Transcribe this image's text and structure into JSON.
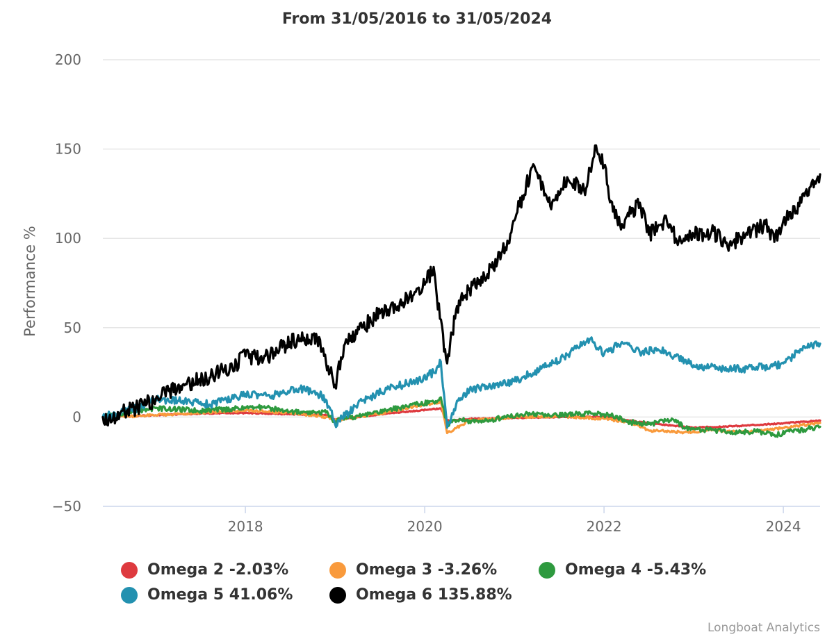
{
  "chart_data": {
    "type": "line",
    "title": "From 31/05/2016 to 31/05/2024",
    "xlabel": "",
    "ylabel": "Performance %",
    "xlim": [
      2016.41,
      2024.41
    ],
    "ylim": [
      -50,
      200
    ],
    "yticks": [
      -50,
      0,
      50,
      100,
      150,
      200
    ],
    "xticks": [
      2018,
      2020,
      2022,
      2024
    ],
    "grid": true,
    "legend_position": "bottom",
    "series": [
      {
        "name": "Omega 2",
        "legend_label": "Omega 2 -2.03%",
        "color": "#de3a3f",
        "x": [
          2016.41,
          2017.0,
          2017.5,
          2018.0,
          2018.5,
          2018.9,
          2019.0,
          2019.5,
          2019.9,
          2020.18,
          2020.25,
          2020.5,
          2021.0,
          2021.5,
          2022.0,
          2022.5,
          2023.0,
          2023.5,
          2024.0,
          2024.41
        ],
        "y": [
          0.0,
          1.0,
          2.0,
          2.2,
          1.6,
          1.0,
          -1.5,
          1.5,
          3.5,
          4.8,
          -2.0,
          -1.0,
          -0.5,
          0.0,
          0.0,
          -3.5,
          -6.0,
          -5.0,
          -3.5,
          -2.03
        ]
      },
      {
        "name": "Omega 3",
        "legend_label": "Omega 3 -3.26%",
        "color": "#f99a3c",
        "x": [
          2016.41,
          2017.0,
          2017.5,
          2018.0,
          2018.5,
          2018.9,
          2019.0,
          2019.5,
          2019.9,
          2020.18,
          2020.25,
          2020.5,
          2021.0,
          2021.5,
          2022.0,
          2022.3,
          2022.5,
          2022.9,
          2023.2,
          2023.6,
          2024.0,
          2024.41
        ],
        "y": [
          0.0,
          1.0,
          2.5,
          3.5,
          2.5,
          0.0,
          -2.0,
          2.0,
          6.0,
          8.5,
          -9.0,
          -2.0,
          0.0,
          0.5,
          -1.0,
          -3.0,
          -7.5,
          -8.5,
          -7.5,
          -8.5,
          -6.0,
          -3.26
        ]
      },
      {
        "name": "Omega 4",
        "legend_label": "Omega 4 -5.43%",
        "color": "#2e9a3f",
        "x": [
          2016.41,
          2016.7,
          2017.0,
          2017.5,
          2018.0,
          2018.2,
          2018.5,
          2018.9,
          2019.0,
          2019.3,
          2019.6,
          2019.9,
          2020.1,
          2020.18,
          2020.25,
          2020.4,
          2020.6,
          2020.9,
          2021.2,
          2021.4,
          2021.6,
          2021.9,
          2022.1,
          2022.3,
          2022.5,
          2022.7,
          2022.8,
          2022.9,
          2023.1,
          2023.4,
          2023.7,
          2023.9,
          2024.1,
          2024.41
        ],
        "y": [
          0.0,
          3.0,
          5.0,
          3.5,
          5.0,
          5.5,
          3.0,
          2.5,
          -2.5,
          1.0,
          4.0,
          7.0,
          8.5,
          11.0,
          -4.0,
          -1.5,
          -3.0,
          0.0,
          2.0,
          0.5,
          1.5,
          2.0,
          0.5,
          -3.0,
          -4.0,
          -2.0,
          -1.5,
          -6.5,
          -7.0,
          -8.5,
          -8.0,
          -10.0,
          -8.0,
          -5.43
        ]
      },
      {
        "name": "Omega 5",
        "legend_label": "Omega 5 41.06%",
        "color": "#2391b0",
        "x": [
          2016.41,
          2016.8,
          2017.0,
          2017.3,
          2017.6,
          2017.9,
          2018.0,
          2018.3,
          2018.6,
          2018.85,
          2018.95,
          2019.0,
          2019.3,
          2019.6,
          2019.9,
          2020.1,
          2020.18,
          2020.25,
          2020.35,
          2020.5,
          2020.8,
          2021.0,
          2021.3,
          2021.6,
          2021.85,
          2022.0,
          2022.2,
          2022.4,
          2022.6,
          2022.8,
          2023.0,
          2023.3,
          2023.6,
          2023.9,
          2024.0,
          2024.2,
          2024.41
        ],
        "y": [
          0.0,
          5.0,
          10.0,
          9.0,
          7.0,
          11.0,
          13.0,
          12.0,
          16.0,
          12.0,
          4.0,
          -4.0,
          9.0,
          16.0,
          20.0,
          25.0,
          31.0,
          -6.0,
          7.0,
          15.0,
          18.0,
          20.0,
          27.0,
          35.0,
          44.0,
          35.0,
          42.0,
          36.0,
          38.0,
          34.0,
          29.0,
          27.0,
          27.0,
          29.0,
          30.0,
          38.0,
          41.06
        ]
      },
      {
        "name": "Omega 6",
        "legend_label": "Omega 6 135.88%",
        "color": "#000000",
        "x": [
          2016.41,
          2016.5,
          2016.6,
          2016.8,
          2017.0,
          2017.3,
          2017.6,
          2017.9,
          2018.0,
          2018.2,
          2018.5,
          2018.8,
          2018.9,
          2019.0,
          2019.1,
          2019.3,
          2019.5,
          2019.7,
          2019.9,
          2020.0,
          2020.1,
          2020.17,
          2020.25,
          2020.35,
          2020.5,
          2020.7,
          2020.9,
          2021.0,
          2021.2,
          2021.4,
          2021.6,
          2021.8,
          2021.9,
          2022.0,
          2022.1,
          2022.2,
          2022.4,
          2022.5,
          2022.7,
          2022.8,
          2023.0,
          2023.2,
          2023.4,
          2023.6,
          2023.8,
          2023.9,
          2024.0,
          2024.2,
          2024.35,
          2024.41
        ],
        "y": [
          0.0,
          -3.0,
          2.0,
          5.0,
          10.0,
          18.0,
          22.0,
          30.0,
          34.0,
          32.0,
          42.0,
          44.0,
          30.0,
          18.0,
          40.0,
          50.0,
          58.0,
          62.0,
          70.0,
          74.0,
          84.0,
          55.0,
          30.0,
          60.0,
          72.0,
          80.0,
          95.0,
          110.0,
          140.0,
          118.0,
          133.0,
          128.0,
          152.0,
          140.0,
          115.0,
          108.0,
          120.0,
          102.0,
          110.0,
          100.0,
          102.0,
          104.0,
          97.0,
          102.0,
          108.0,
          98.0,
          110.0,
          120.0,
          132.0,
          135.88
        ]
      }
    ]
  },
  "credit": "Longboat Analytics"
}
